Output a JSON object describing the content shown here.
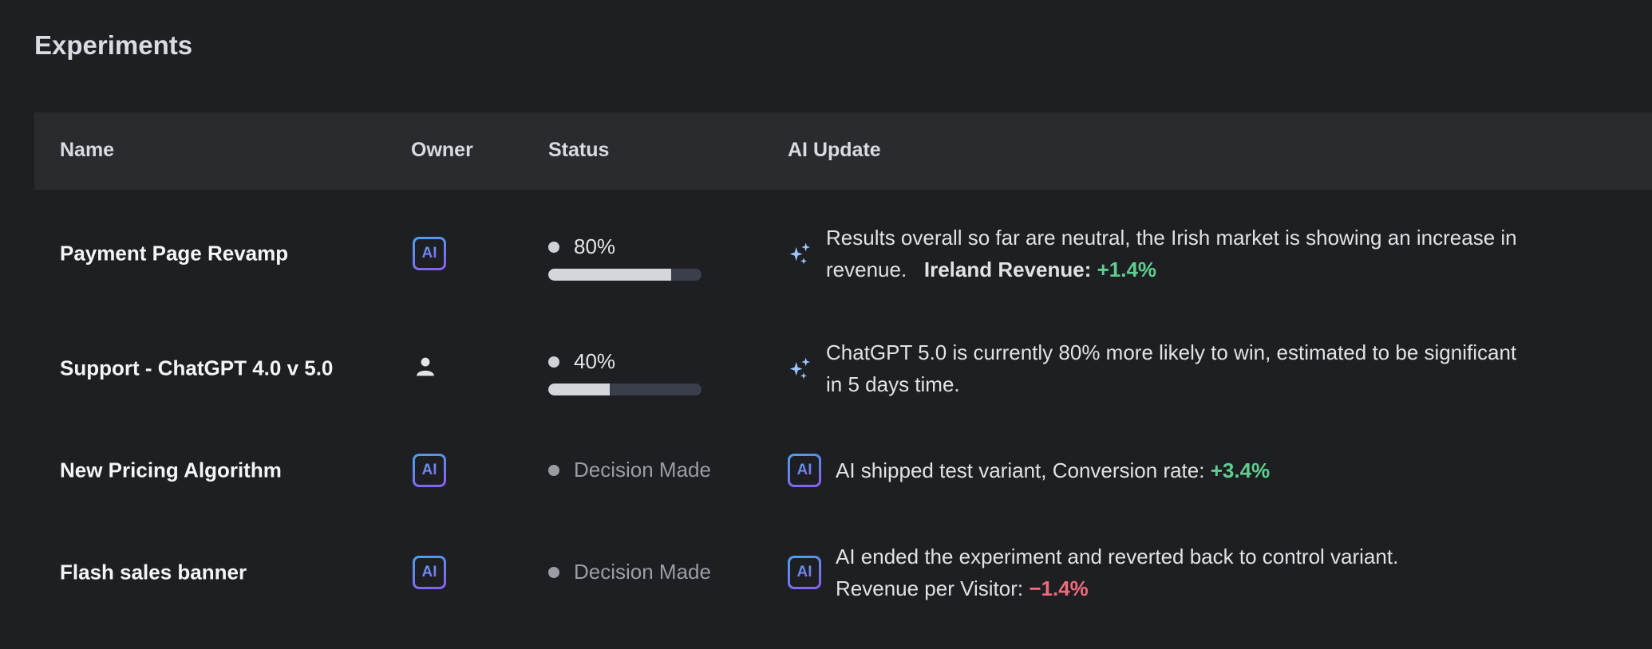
{
  "title": "Experiments",
  "columns": [
    "Name",
    "Owner",
    "Status",
    "AI Update"
  ],
  "colors": {
    "positive": "#5fcf8f",
    "negative": "#ef6b7b",
    "accent_start": "#4aa3ec",
    "accent_end": "#8a5cf0"
  },
  "rows": [
    {
      "name": "Payment Page Revamp",
      "owner": "AI",
      "owner_icon": "ai-badge",
      "status": "80%",
      "progress": 80,
      "update_icon": "sparkle",
      "update_line1": "Results overall so far are neutral, the Irish market is showing an increase in",
      "update_line2": "revenue.",
      "metric_label": "Ireland Revenue:",
      "metric_value": "+1.4%"
    },
    {
      "name": "Support - ChatGPT 4.0 v 5.0",
      "owner_icon": "user",
      "status": "40%",
      "progress": 40,
      "update_icon": "sparkle",
      "update_line1": "ChatGPT 5.0 is currently 80% more likely to win, estimated to be significant",
      "update_line2": "in 5 days time."
    },
    {
      "name": "New Pricing Algorithm",
      "owner": "AI",
      "owner_icon": "ai-badge",
      "status": "Decision Made",
      "update_icon": "ai-badge",
      "update_badge": "AI",
      "update_line1": "AI shipped test variant, Conversion rate:",
      "metric_value": "+3.4%"
    },
    {
      "name": "Flash sales banner",
      "owner": "AI",
      "owner_icon": "ai-badge",
      "status": "Decision Made",
      "update_icon": "ai-badge",
      "update_badge": "AI",
      "update_line1": "AI ended the experiment and reverted back to control variant.",
      "metric_label": "Revenue per Visitor:",
      "metric_value": "−1.4%"
    }
  ]
}
